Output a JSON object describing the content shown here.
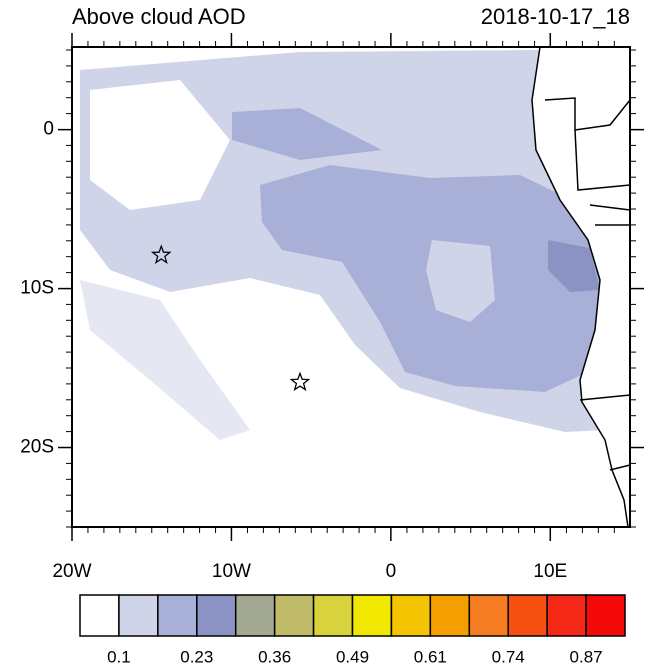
{
  "title": "Above cloud AOD",
  "timestamp": "2018-10-17_18",
  "map": {
    "xlim": [
      -20,
      15
    ],
    "ylim": [
      -25,
      5.2
    ],
    "xticks": [
      {
        "value": -20,
        "label": "20W"
      },
      {
        "value": -10,
        "label": "10W"
      },
      0,
      {
        "value": 10,
        "label": "10E"
      }
    ],
    "yticks": [
      0,
      {
        "value": -10,
        "label": "10S"
      },
      {
        "value": -20,
        "label": "20S"
      }
    ],
    "markers": [
      {
        "lon": -14.4,
        "lat": -7.9
      },
      {
        "lon": -5.7,
        "lat": -15.9
      }
    ]
  },
  "colorbar": {
    "colors": [
      "#ffffff",
      "#d0d4e8",
      "#a9b0d8",
      "#8b93c4",
      "#a3a892",
      "#c0bb68",
      "#d8d23c",
      "#f0e800",
      "#f5c400",
      "#f5a000",
      "#f57c20",
      "#f55010",
      "#f52818",
      "#f50a0a"
    ],
    "labels": [
      "0.1",
      "0.23",
      "0.36",
      "0.49",
      "0.61",
      "0.74",
      "0.87"
    ]
  }
}
